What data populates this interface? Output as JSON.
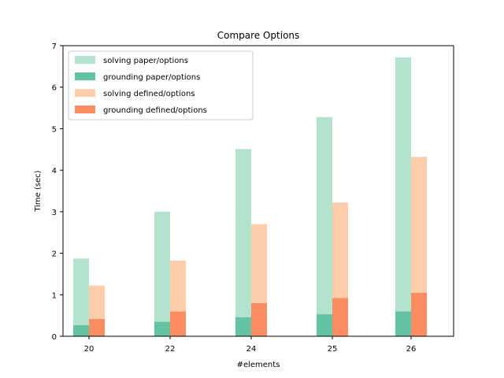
{
  "chart_data": {
    "type": "bar",
    "title": "Compare Options",
    "xlabel": "#elements",
    "ylabel": "Time (sec)",
    "categories": [
      "20",
      "22",
      "24",
      "25",
      "26"
    ],
    "ylim": [
      0,
      7
    ],
    "yticks": [
      0,
      1,
      2,
      3,
      4,
      5,
      6,
      7
    ],
    "grid": false,
    "legend_position": "top-left",
    "stacked": true,
    "series": [
      {
        "name": "solving paper/options",
        "group": "paper/options",
        "color": "#b3e2cd",
        "values": [
          1.6,
          2.65,
          4.05,
          4.75,
          6.12
        ]
      },
      {
        "name": "grounding paper/options",
        "group": "paper/options",
        "color": "#66c2a5",
        "values": [
          0.27,
          0.35,
          0.46,
          0.53,
          0.6
        ]
      },
      {
        "name": "solving defined/options",
        "group": "defined/options",
        "color": "#fdcdac",
        "values": [
          0.8,
          1.22,
          1.9,
          2.3,
          3.27
        ]
      },
      {
        "name": "grounding defined/options",
        "group": "defined/options",
        "color": "#fc8d62",
        "values": [
          0.42,
          0.6,
          0.8,
          0.92,
          1.05
        ]
      }
    ]
  }
}
